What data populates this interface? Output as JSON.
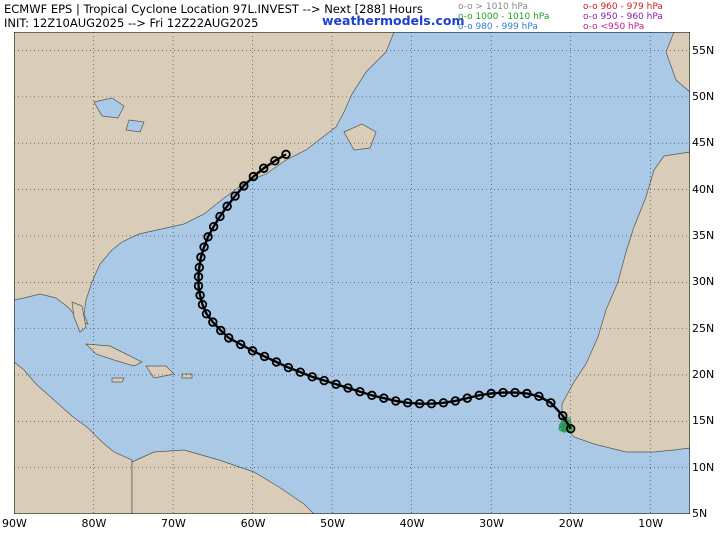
{
  "header": {
    "title": "ECMWF EPS | Tropical Cyclone Location 97L.INVEST --> Next [288] Hours",
    "init": "INIT: 12Z10AUG2025 --> Fri 12Z22AUG2025",
    "brand": "weathermodels.com"
  },
  "legend": [
    {
      "label": "o-o > 1010 hPa",
      "color": "#8a8a8a"
    },
    {
      "label": "o-o 1000 - 1010 hPa",
      "color": "#22a022"
    },
    {
      "label": "o-o 980 - 999 hPa",
      "color": "#2f7fd6"
    },
    {
      "label": "o-o 960 - 979 hPa",
      "color": "#d42020"
    },
    {
      "label": "o-o 950 - 960 hPa",
      "color": "#8a1faa"
    },
    {
      "label": "o-o <950 hPa",
      "color": "#c0208a"
    }
  ],
  "colors": {
    "ocean": "#a9c9e6",
    "land": "#d9cdb9",
    "coast": "#555555",
    "mean_track": "#000000"
  },
  "axes": {
    "lon_labels": [
      "90W",
      "80W",
      "70W",
      "60W",
      "50W",
      "40W",
      "30W",
      "20W",
      "10W"
    ],
    "lat_labels": [
      "5N",
      "10N",
      "15N",
      "20N",
      "25N",
      "30N",
      "35N",
      "40N",
      "45N",
      "50N",
      "55N"
    ],
    "lon_range": [
      -90,
      -5
    ],
    "lat_range": [
      5,
      57
    ]
  },
  "mean_track": [
    [
      -20,
      14.2
    ],
    [
      -21,
      15.6
    ],
    [
      -22.5,
      17
    ],
    [
      -24,
      17.7
    ],
    [
      -25.5,
      18
    ],
    [
      -27,
      18.1
    ],
    [
      -28.5,
      18.1
    ],
    [
      -30,
      18
    ],
    [
      -31.5,
      17.8
    ],
    [
      -33,
      17.5
    ],
    [
      -34.5,
      17.2
    ],
    [
      -36,
      17
    ],
    [
      -37.5,
      16.9
    ],
    [
      -39,
      16.9
    ],
    [
      -40.5,
      17
    ],
    [
      -42,
      17.2
    ],
    [
      -43.5,
      17.5
    ],
    [
      -45,
      17.8
    ],
    [
      -46.5,
      18.2
    ],
    [
      -48,
      18.6
    ],
    [
      -49.5,
      19
    ],
    [
      -51,
      19.4
    ],
    [
      -52.5,
      19.8
    ],
    [
      -54,
      20.3
    ],
    [
      -55.5,
      20.8
    ],
    [
      -57,
      21.4
    ],
    [
      -58.5,
      22
    ],
    [
      -60,
      22.6
    ],
    [
      -61.5,
      23.3
    ],
    [
      -63,
      24
    ],
    [
      -64,
      24.8
    ],
    [
      -65,
      25.7
    ],
    [
      -65.8,
      26.6
    ],
    [
      -66.3,
      27.6
    ],
    [
      -66.6,
      28.6
    ],
    [
      -66.8,
      29.6
    ],
    [
      -66.8,
      30.6
    ],
    [
      -66.7,
      31.6
    ],
    [
      -66.5,
      32.7
    ],
    [
      -66.1,
      33.8
    ],
    [
      -65.6,
      34.9
    ],
    [
      -64.9,
      36
    ],
    [
      -64.1,
      37.1
    ],
    [
      -63.2,
      38.2
    ],
    [
      -62.2,
      39.3
    ],
    [
      -61.1,
      40.4
    ],
    [
      -59.9,
      41.4
    ],
    [
      -58.6,
      42.3
    ],
    [
      -57.2,
      43.1
    ],
    [
      -55.8,
      43.8
    ]
  ]
}
